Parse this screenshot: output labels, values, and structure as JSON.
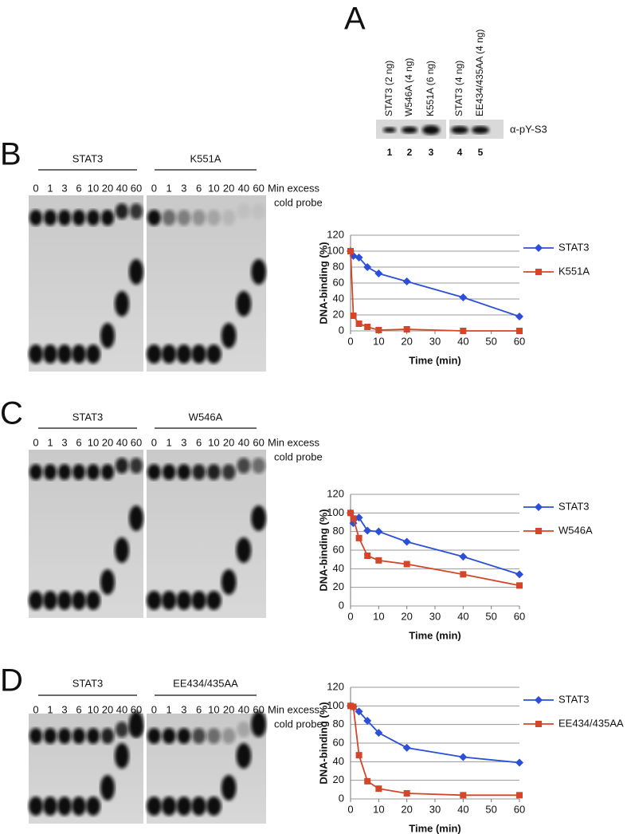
{
  "panel_a": {
    "letter": "A",
    "lanes": [
      "STAT3 (2 ng)",
      "W546A (4 ng)",
      "K551A (6 ng)",
      "STAT3 (4 ng)",
      "EE434/435AA (4 ng)"
    ],
    "numbers": [
      "1",
      "2",
      "3",
      "4",
      "5"
    ],
    "antibody": "α-pY-S3"
  },
  "gels": [
    {
      "letter": "B",
      "caption_1": "Min excess",
      "caption_2": "cold probe",
      "groups": [
        {
          "label": "STAT3",
          "lanes": [
            "0",
            "1",
            "3",
            "6",
            "10",
            "20",
            "40",
            "60"
          ]
        },
        {
          "label": "K551A",
          "lanes": [
            "0",
            "1",
            "3",
            "6",
            "10",
            "20",
            "40",
            "60"
          ]
        }
      ]
    },
    {
      "letter": "C",
      "caption_1": "Min excess",
      "caption_2": "cold probe",
      "groups": [
        {
          "label": "STAT3",
          "lanes": [
            "0",
            "1",
            "3",
            "6",
            "10",
            "20",
            "40",
            "60"
          ]
        },
        {
          "label": "W546A",
          "lanes": [
            "0",
            "1",
            "3",
            "6",
            "10",
            "20",
            "40",
            "60"
          ]
        }
      ]
    },
    {
      "letter": "D",
      "caption_1": "Min excess",
      "caption_2": "cold probe",
      "groups": [
        {
          "label": "STAT3",
          "lanes": [
            "0",
            "1",
            "3",
            "6",
            "10",
            "20",
            "40",
            "60"
          ]
        },
        {
          "label": "EE434/435AA",
          "lanes": [
            "0",
            "1",
            "3",
            "6",
            "10",
            "20",
            "40",
            "60"
          ]
        }
      ]
    }
  ],
  "chart_data": [
    {
      "type": "line",
      "x_label": "Time (min)",
      "y_label": "DNA-binding (%)",
      "x": [
        0,
        1,
        3,
        6,
        10,
        20,
        40,
        60
      ],
      "xlim": [
        0,
        60
      ],
      "xticks": [
        0,
        10,
        20,
        30,
        40,
        50,
        60
      ],
      "ylim": [
        0,
        120
      ],
      "yticks": [
        0,
        20,
        40,
        60,
        80,
        100,
        120
      ],
      "grid": true,
      "legend": "right",
      "series": [
        {
          "name": "STAT3",
          "color": "#2b4fd8",
          "marker": "diamond",
          "values": [
            100,
            94,
            92,
            80,
            72,
            62,
            42,
            18
          ]
        },
        {
          "name": "K551A",
          "color": "#d4462a",
          "marker": "square",
          "values": [
            100,
            19,
            9,
            5,
            1,
            2,
            0,
            0
          ]
        }
      ]
    },
    {
      "type": "line",
      "x_label": "Time (min)",
      "y_label": "DNA-binding (%)",
      "x": [
        0,
        1,
        3,
        6,
        10,
        20,
        40,
        60
      ],
      "xlim": [
        0,
        60
      ],
      "xticks": [
        0,
        10,
        20,
        30,
        40,
        50,
        60
      ],
      "ylim": [
        0,
        120
      ],
      "yticks": [
        0,
        20,
        40,
        60,
        80,
        100,
        120
      ],
      "grid": true,
      "legend": "right",
      "series": [
        {
          "name": "STAT3",
          "color": "#2b4fd8",
          "marker": "diamond",
          "values": [
            100,
            89,
            95,
            81,
            80,
            69,
            53,
            34
          ]
        },
        {
          "name": "W546A",
          "color": "#d4462a",
          "marker": "square",
          "values": [
            100,
            94,
            73,
            54,
            49,
            45,
            34,
            22
          ]
        }
      ]
    },
    {
      "type": "line",
      "x_label": "Time (min)",
      "y_label": "DNA-binding (%)",
      "x": [
        0,
        1,
        3,
        6,
        10,
        20,
        40,
        60
      ],
      "xlim": [
        0,
        60
      ],
      "xticks": [
        0,
        10,
        20,
        30,
        40,
        50,
        60
      ],
      "ylim": [
        0,
        120
      ],
      "yticks": [
        0,
        20,
        40,
        60,
        80,
        100,
        120
      ],
      "grid": true,
      "legend": "right",
      "series": [
        {
          "name": "STAT3",
          "color": "#2b4fd8",
          "marker": "diamond",
          "values": [
            100,
            99,
            94,
            84,
            71,
            55,
            45,
            39
          ]
        },
        {
          "name": "EE434/435AA",
          "color": "#d4462a",
          "marker": "square",
          "values": [
            100,
            99,
            47,
            19,
            11,
            6,
            4,
            4
          ]
        }
      ]
    }
  ]
}
